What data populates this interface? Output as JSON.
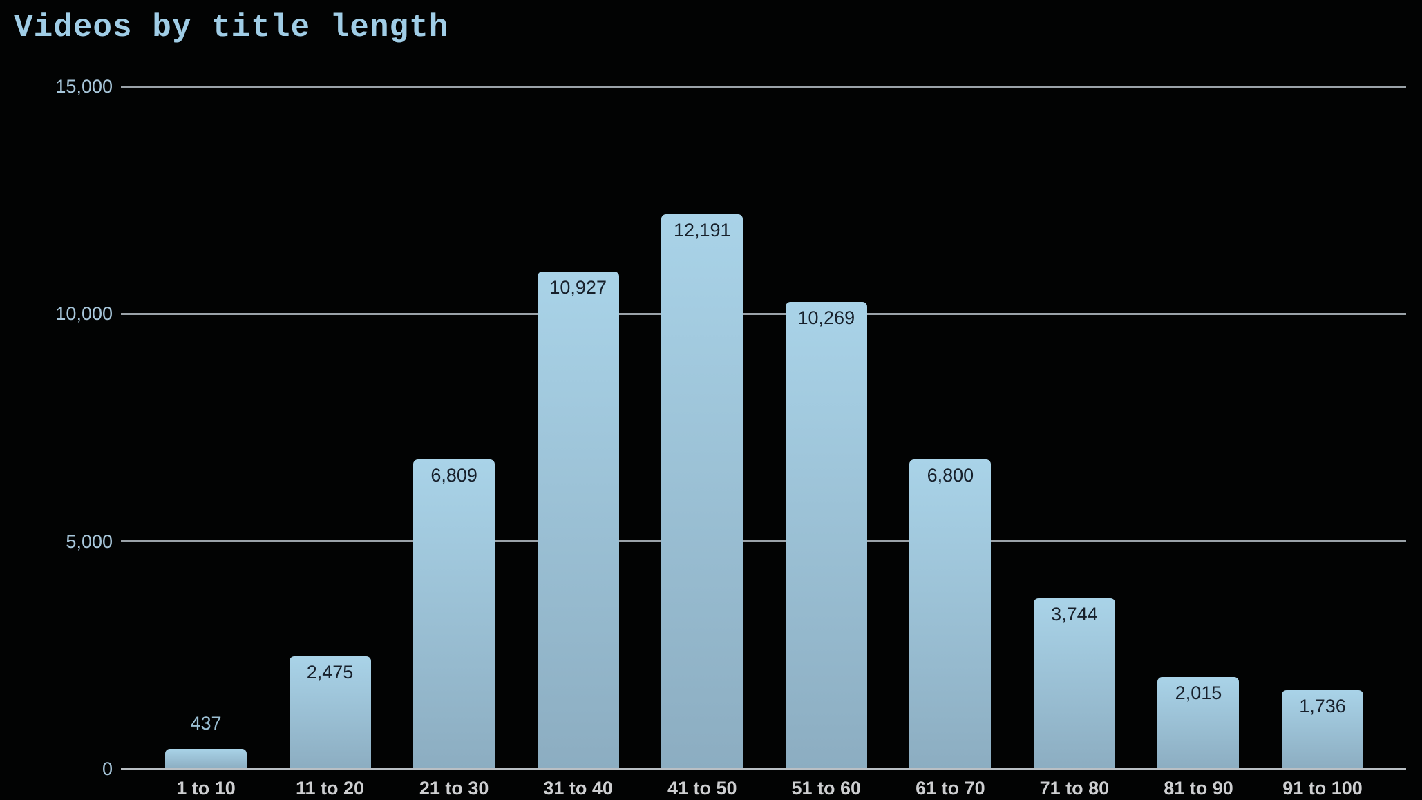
{
  "chart_data": {
    "type": "bar",
    "title": "Videos by title length",
    "categories": [
      "1 to 10",
      "11 to 20",
      "21 to 30",
      "31 to 40",
      "41 to 50",
      "51 to 60",
      "61 to 70",
      "71 to 80",
      "81 to 90",
      "91 to 100"
    ],
    "values": [
      437,
      2475,
      6809,
      10927,
      12191,
      10269,
      6800,
      3744,
      2015,
      1736
    ],
    "value_labels": [
      "437",
      "2,475",
      "6,809",
      "10,927",
      "12,191",
      "10,269",
      "6,800",
      "3,744",
      "2,015",
      "1,736"
    ],
    "xlabel": "",
    "ylabel": "",
    "ylim": [
      0,
      15000
    ],
    "yticks": [
      0,
      5000,
      10000,
      15000
    ],
    "ytick_labels": [
      "0",
      "5,000",
      "10,000",
      "15,000"
    ],
    "grid": "horizontal-only",
    "legend": "none",
    "value_label_position": "inside-top-unless-bar-too-short"
  },
  "colors": {
    "background": "#020303",
    "title_text": "#a0cde6",
    "y_tick_text": "#a7c6da",
    "x_tick_text": "#cdced0",
    "bar_gradient_top": "#a9d3e8",
    "bar_gradient_bottom": "#8cadc1",
    "value_label_inside": "#17202b",
    "value_label_outside": "#9cc0d4",
    "gridline": "#9aa2a8",
    "axis_line": "#b9bfc4"
  }
}
